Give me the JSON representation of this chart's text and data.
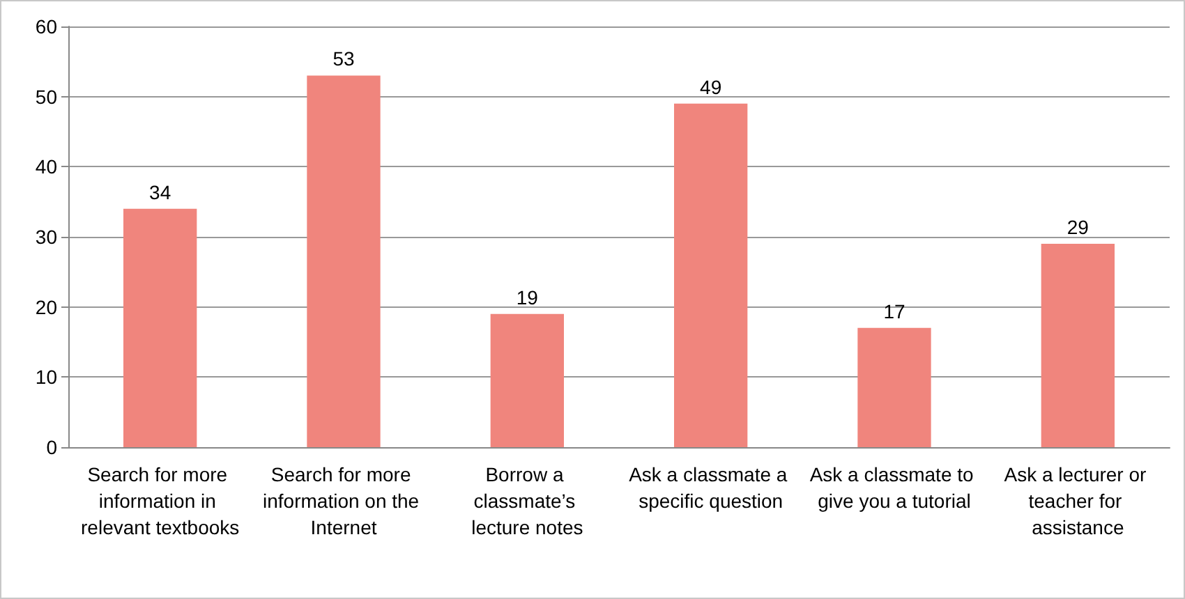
{
  "chart_data": {
    "type": "bar",
    "categories": [
      "Search for more information in relevant textbooks",
      "Search for more information on the Internet",
      "Borrow a classmate’s lecture notes",
      "Ask a classmate a specific question",
      "Ask a classmate to give you a tutorial",
      "Ask a lecturer or teacher for assistance"
    ],
    "values": [
      34,
      53,
      19,
      49,
      17,
      29
    ],
    "color": "#f0857d",
    "ylim": [
      0,
      60
    ],
    "yticks": [
      0,
      10,
      20,
      30,
      40,
      50,
      60
    ],
    "grid": "y",
    "data_labels": true
  }
}
